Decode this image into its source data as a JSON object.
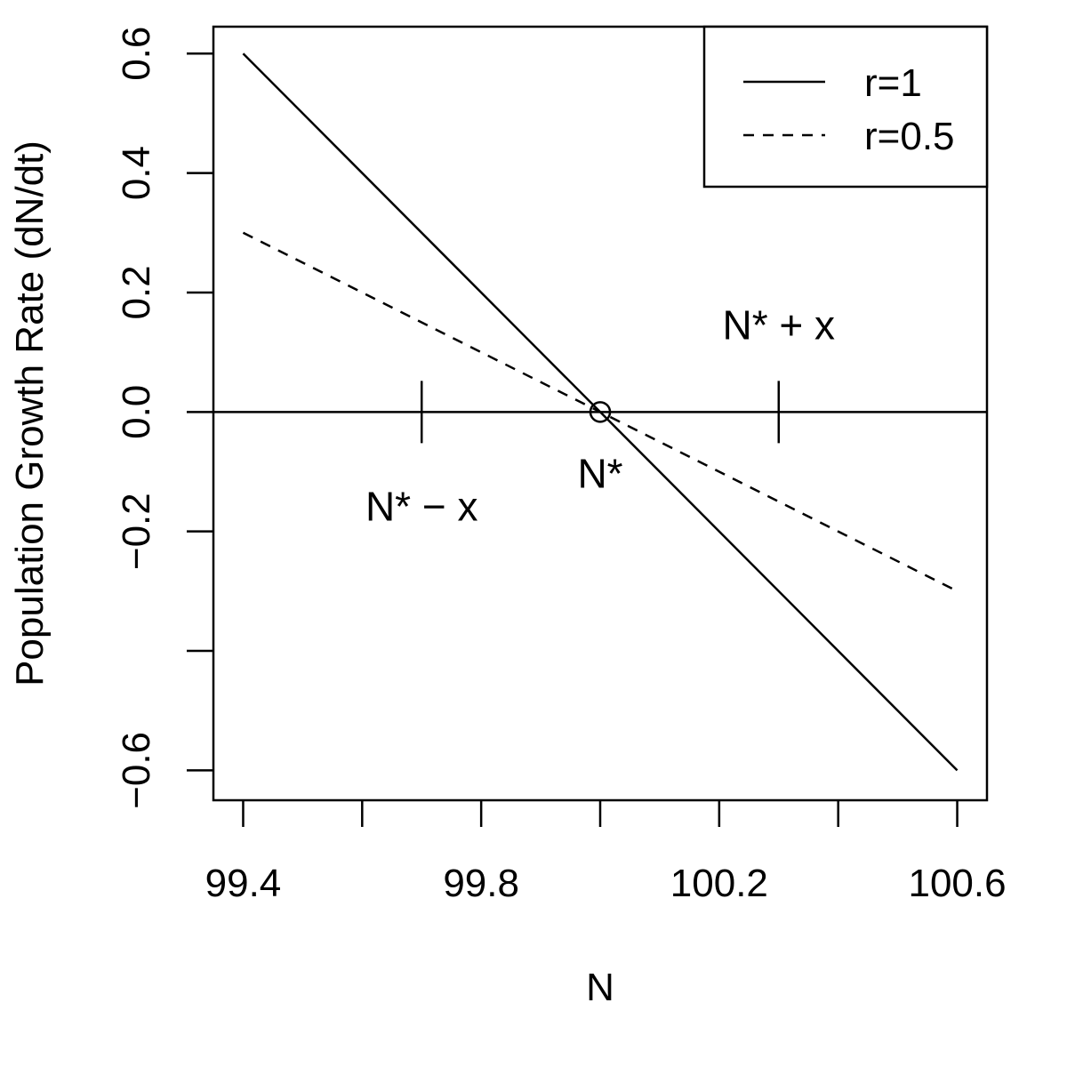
{
  "chart_data": {
    "type": "line",
    "title": "",
    "xlabel": "N",
    "ylabel": "Population Growth Rate (dN/dt)",
    "xlim": [
      99.35,
      100.65
    ],
    "ylim": [
      -0.65,
      0.645
    ],
    "x_ticks": [
      99.4,
      99.6,
      99.8,
      100.0,
      100.2,
      100.4,
      100.6
    ],
    "x_tick_labels": [
      "99.4",
      "",
      "99.8",
      "",
      "100.2",
      "",
      "100.6"
    ],
    "y_ticks": [
      0.6,
      0.4,
      0.2,
      0.0,
      -0.2,
      -0.4,
      -0.6
    ],
    "y_tick_labels": [
      "0.6",
      "0.4",
      "0.2",
      "0.0",
      "−0.2",
      "",
      "−0.6"
    ],
    "grid": false,
    "legend_position": "top-right",
    "series": [
      {
        "name": "r=1",
        "style": "solid",
        "x": [
          99.4,
          100.6
        ],
        "y": [
          0.6,
          -0.6
        ]
      },
      {
        "name": "r=0.5",
        "style": "dashed",
        "x": [
          99.4,
          100.6
        ],
        "y": [
          0.3,
          -0.3
        ]
      }
    ],
    "reference_line": {
      "y": 0
    },
    "equilibrium_point": {
      "x": 100.0,
      "y": 0.0,
      "label": "N*"
    },
    "markers": [
      {
        "x": 99.7,
        "label": "N* − x",
        "label_side": "below"
      },
      {
        "x": 100.3,
        "label": "N* + x",
        "label_side": "above"
      }
    ]
  }
}
